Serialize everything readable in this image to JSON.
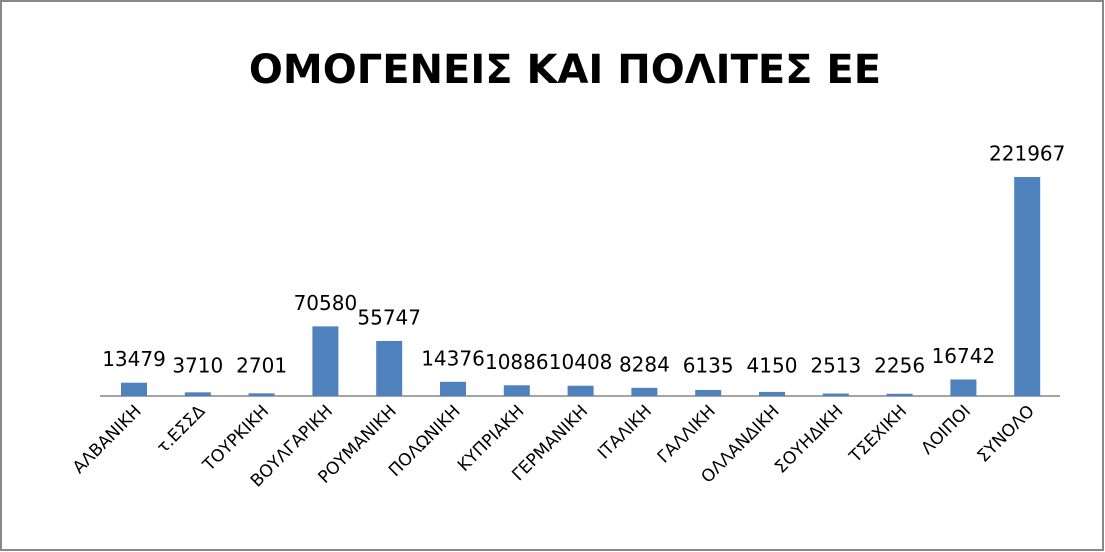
{
  "chart_data": {
    "type": "bar",
    "title": "ΟΜΟΓΕΝΕΙΣ ΚΑΙ ΠΟΛΙΤΕΣ ΕΕ",
    "categories": [
      "ΑΛΒΑΝΙΚΗ",
      "τ.ΕΣΣΔ",
      "ΤΟΥΡΚΙΚΗ",
      "ΒΟΥΛΓΑΡΙΚΗ",
      "ΡΟΥΜΑΝΙΚΗ",
      "ΠΟΛΩΝΙΚΗ",
      "ΚΥΠΡΙΑΚΗ",
      "ΓΕΡΜΑΝΙΚΗ",
      "ΙΤΑΛΙΚΗ",
      "ΓΑΛΛΙΚΗ",
      "ΟΛΛΑΝΔΙΚΗ",
      "ΣΟΥΗΔΙΚΗ",
      "ΤΣΕΧΙΚΗ",
      "ΛΟΙΠΟΙ",
      "ΣΥΝΟΛΟ"
    ],
    "values": [
      13479,
      3710,
      2701,
      70580,
      55747,
      14376,
      10886,
      10408,
      8284,
      6135,
      4150,
      2513,
      2256,
      16742,
      221967
    ],
    "color": "#4f81bd"
  }
}
